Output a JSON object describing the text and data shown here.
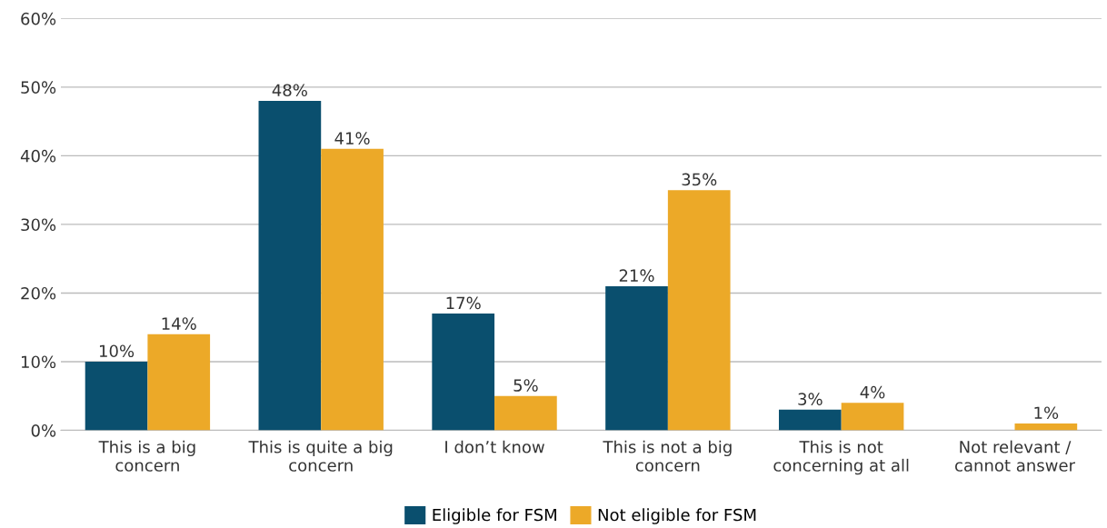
{
  "chart_data": {
    "type": "bar",
    "categories": [
      "This is a big\nconcern",
      "This is quite a big\nconcern",
      "I don’t know",
      "This is not a big\nconcern",
      "This is not\nconcerning at all",
      "Not relevant /\ncannot answer"
    ],
    "series": [
      {
        "name": "Eligible for FSM",
        "color": "#0a4f6e",
        "values": [
          10,
          48,
          17,
          21,
          3,
          null
        ],
        "value_labels": [
          "10%",
          "48%",
          "17%",
          "21%",
          "3%",
          null
        ]
      },
      {
        "name": "Not eligible for FSM",
        "color": "#eca928",
        "values": [
          14,
          41,
          5,
          35,
          4,
          1
        ],
        "value_labels": [
          "14%",
          "41%",
          "5%",
          "35%",
          "4%",
          "1%"
        ]
      }
    ],
    "ylim": [
      0,
      60
    ],
    "yticks": [
      {
        "value": 0,
        "label": "0%"
      },
      {
        "value": 10,
        "label": "10%"
      },
      {
        "value": 20,
        "label": "20%"
      },
      {
        "value": 30,
        "label": "30%"
      },
      {
        "value": 40,
        "label": "40%"
      },
      {
        "value": 50,
        "label": "50%"
      },
      {
        "value": 60,
        "label": "60%"
      }
    ],
    "grid": "y",
    "legend": "bottom"
  }
}
